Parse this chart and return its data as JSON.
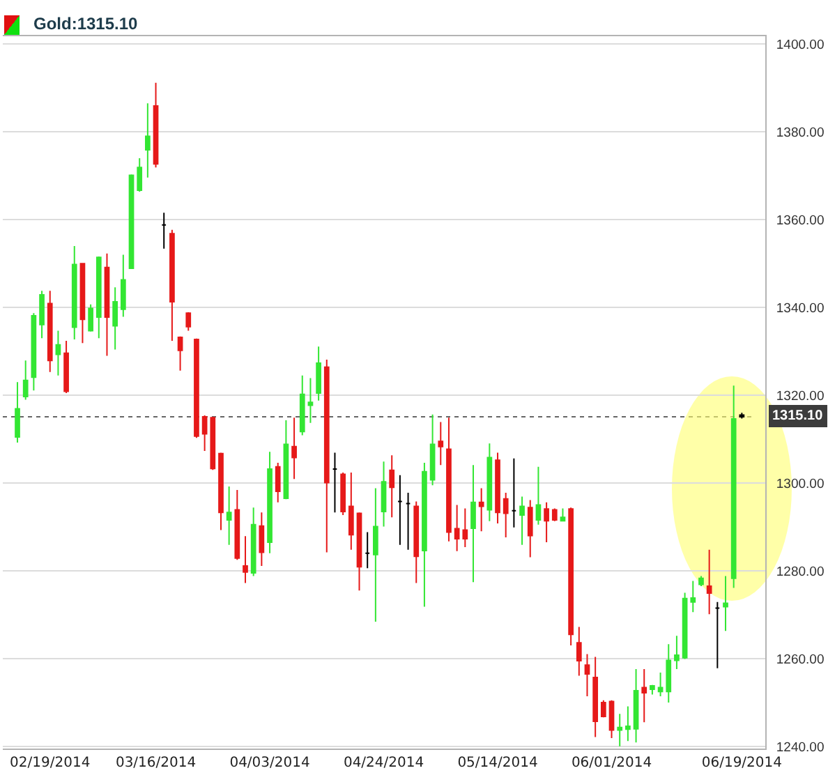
{
  "chart_data": {
    "type": "candlestick",
    "title": "Gold:1315.10",
    "categories": [
      null,
      null,
      null,
      null,
      "02/19/2014",
      null,
      null,
      null,
      null,
      null,
      null,
      null,
      null,
      null,
      null,
      null,
      null,
      "03/16/2014",
      null,
      null,
      null,
      null,
      null,
      null,
      null,
      null,
      null,
      null,
      null,
      null,
      null,
      "04/03/2014",
      null,
      null,
      null,
      null,
      null,
      null,
      null,
      null,
      null,
      null,
      null,
      null,
      null,
      "04/24/2014",
      null,
      null,
      null,
      null,
      null,
      null,
      null,
      null,
      null,
      null,
      null,
      null,
      null,
      "05/14/2014",
      null,
      null,
      null,
      null,
      null,
      null,
      null,
      null,
      null,
      null,
      null,
      null,
      null,
      "06/01/2014",
      null,
      null,
      null,
      null,
      null,
      null,
      null,
      null,
      null,
      null,
      null,
      null,
      null,
      null,
      null,
      "06/19/2014"
    ],
    "ohlc": [
      [
        1310.5,
        1323.0,
        1309.2,
        1316.9
      ],
      [
        1319.7,
        1327.9,
        1319.0,
        1323.4
      ],
      [
        1324.1,
        1338.7,
        1321.1,
        1338.1
      ],
      [
        1336.1,
        1343.8,
        1333.0,
        1342.9
      ],
      [
        1340.9,
        1343.8,
        1325.3,
        1327.9
      ],
      [
        1329.3,
        1334.7,
        1324.5,
        1331.5
      ],
      [
        1329.6,
        1332.4,
        1320.5,
        1320.9
      ],
      [
        1335.5,
        1354.0,
        1332.7,
        1349.8
      ],
      [
        1350.0,
        1350.1,
        1331.9,
        1337.3
      ],
      [
        1334.7,
        1340.7,
        1334.5,
        1339.8
      ],
      [
        1337.8,
        1351.6,
        1333.0,
        1351.4
      ],
      [
        1349.1,
        1352.3,
        1329.0,
        1337.8
      ],
      [
        1335.8,
        1344.6,
        1330.4,
        1341.3
      ],
      [
        1339.6,
        1352.0,
        1337.9,
        1346.3
      ],
      [
        1348.9,
        1370.3,
        1348.8,
        1370.1
      ],
      [
        1366.7,
        1374.0,
        1366.4,
        1371.9
      ],
      [
        1375.9,
        1386.5,
        1369.6,
        1379.0
      ],
      [
        1385.9,
        1391.2,
        1371.9,
        1372.7
      ],
      [
        1358.8,
        1361.6,
        1353.4,
        1358.8
      ],
      [
        1356.8,
        1357.7,
        1332.4,
        1341.3
      ],
      [
        1333.2,
        1333.4,
        1325.6,
        1330.2
      ],
      [
        1338.7,
        1338.9,
        1334.7,
        1335.6
      ],
      [
        1332.7,
        1332.9,
        1310.3,
        1310.7
      ],
      [
        1315.1,
        1315.4,
        1307.3,
        1311.2
      ],
      [
        1314.9,
        1315.1,
        1303.0,
        1303.3
      ],
      [
        1306.7,
        1306.9,
        1289.3,
        1293.3
      ],
      [
        1291.6,
        1299.2,
        1285.9,
        1293.3
      ],
      [
        1293.9,
        1298.4,
        1282.5,
        1282.9
      ],
      [
        1281.1,
        1287.9,
        1277.2,
        1279.7
      ],
      [
        1279.5,
        1294.4,
        1278.8,
        1290.5
      ],
      [
        1290.2,
        1293.3,
        1281.1,
        1284.2
      ],
      [
        1286.5,
        1307.1,
        1284.0,
        1303.2
      ],
      [
        1303.7,
        1304.6,
        1295.6,
        1298.1
      ],
      [
        1296.5,
        1314.3,
        1296.3,
        1308.8
      ],
      [
        1308.3,
        1314.9,
        1300.9,
        1305.8
      ],
      [
        1311.7,
        1324.5,
        1310.9,
        1320.2
      ],
      [
        1317.7,
        1323.9,
        1313.7,
        1318.4
      ],
      [
        1320.5,
        1331.1,
        1318.8,
        1327.3
      ],
      [
        1326.4,
        1328.1,
        1284.2,
        1300.1
      ],
      [
        1303.2,
        1306.9,
        1293.3,
        1303.2
      ],
      [
        1302.0,
        1302.4,
        1292.7,
        1293.5
      ],
      [
        1294.7,
        1302.4,
        1284.8,
        1288.2
      ],
      [
        1293.1,
        1293.3,
        1275.5,
        1280.9
      ],
      [
        1284.0,
        1288.8,
        1280.6,
        1284.0
      ],
      [
        1283.7,
        1298.8,
        1268.4,
        1290.1
      ],
      [
        1293.5,
        1304.9,
        1290.1,
        1300.3
      ],
      [
        1302.9,
        1306.3,
        1292.2,
        1299.0
      ],
      [
        1295.8,
        1301.8,
        1285.9,
        1295.8
      ],
      [
        1295.3,
        1297.8,
        1284.8,
        1295.3
      ],
      [
        1294.7,
        1295.8,
        1277.2,
        1283.3
      ],
      [
        1284.6,
        1304.6,
        1271.8,
        1302.6
      ],
      [
        1300.7,
        1315.6,
        1299.5,
        1308.8
      ],
      [
        1309.5,
        1313.9,
        1304.1,
        1308.3
      ],
      [
        1307.7,
        1314.9,
        1286.7,
        1288.8
      ],
      [
        1289.6,
        1295.0,
        1284.5,
        1287.3
      ],
      [
        1289.3,
        1294.2,
        1285.4,
        1287.3
      ],
      [
        1289.7,
        1304.1,
        1277.4,
        1295.6
      ],
      [
        1295.6,
        1298.8,
        1289.0,
        1294.7
      ],
      [
        1293.9,
        1309.0,
        1291.3,
        1305.8
      ],
      [
        1305.2,
        1306.9,
        1290.8,
        1293.3
      ],
      [
        1296.4,
        1297.8,
        1287.6,
        1293.1
      ],
      [
        1293.7,
        1305.6,
        1289.9,
        1293.7
      ],
      [
        1292.7,
        1296.9,
        1285.9,
        1294.7
      ],
      [
        1294.4,
        1296.1,
        1283.1,
        1288.0
      ],
      [
        1291.6,
        1303.7,
        1290.5,
        1295.0
      ],
      [
        1294.1,
        1295.6,
        1286.5,
        1291.4
      ],
      [
        1293.9,
        1294.2,
        1291.3,
        1291.6
      ],
      [
        1291.4,
        1294.2,
        1291.3,
        1292.2
      ],
      [
        1294.1,
        1294.4,
        1263.0,
        1265.5
      ],
      [
        1263.6,
        1267.2,
        1256.1,
        1259.5
      ],
      [
        1258.5,
        1261.0,
        1251.4,
        1256.5
      ],
      [
        1255.7,
        1260.4,
        1242.1,
        1245.7
      ],
      [
        1250.0,
        1250.5,
        1246.6,
        1246.8
      ],
      [
        1250.2,
        1250.5,
        1241.9,
        1243.7
      ],
      [
        1243.7,
        1247.4,
        1240.0,
        1244.3
      ],
      [
        1243.9,
        1249.1,
        1241.2,
        1244.6
      ],
      [
        1244.0,
        1257.6,
        1240.9,
        1252.7
      ],
      [
        1253.4,
        1257.6,
        1245.5,
        1252.2
      ],
      [
        1253.0,
        1254.0,
        1251.8,
        1253.8
      ],
      [
        1252.5,
        1256.8,
        1251.4,
        1253.4
      ],
      [
        1252.5,
        1263.3,
        1250.0,
        1259.6
      ],
      [
        1259.6,
        1265.2,
        1257.6,
        1260.8
      ],
      [
        1260.2,
        1275.0,
        1259.9,
        1273.7
      ],
      [
        1272.9,
        1277.7,
        1270.6,
        1273.8
      ],
      [
        1276.9,
        1278.8,
        1276.5,
        1278.3
      ],
      [
        1276.5,
        1284.8,
        1270.1,
        1274.9
      ],
      [
        1271.5,
        1272.9,
        1257.8,
        1271.5
      ],
      [
        1271.8,
        1278.8,
        1266.3,
        1272.6
      ],
      [
        1278.3,
        1322.2,
        1276.1,
        1314.6
      ],
      [
        1315.5,
        1316.0,
        1314.7,
        1315.1
      ]
    ],
    "colors": [
      "#33e633",
      "#33e633",
      "#33e633",
      "#33e633",
      "#e61919",
      "#33e633",
      "#e61919",
      "#33e633",
      "#e61919",
      "#33e633",
      "#33e633",
      "#e61919",
      "#33e633",
      "#33e633",
      "#33e633",
      "#33e633",
      "#33e633",
      "#e61919",
      "#000000",
      "#e61919",
      "#e61919",
      "#e61919",
      "#e61919",
      "#e61919",
      "#e61919",
      "#e61919",
      "#33e633",
      "#e61919",
      "#e61919",
      "#33e633",
      "#e61919",
      "#33e633",
      "#e61919",
      "#33e633",
      "#e61919",
      "#33e633",
      "#33e633",
      "#33e633",
      "#e61919",
      "#000000",
      "#e61919",
      "#e61919",
      "#e61919",
      "#000000",
      "#33e633",
      "#33e633",
      "#e61919",
      "#000000",
      "#000000",
      "#e61919",
      "#33e633",
      "#33e633",
      "#e61919",
      "#e61919",
      "#e61919",
      "#e61919",
      "#33e633",
      "#e61919",
      "#33e633",
      "#e61919",
      "#e61919",
      "#000000",
      "#33e633",
      "#e61919",
      "#33e633",
      "#e61919",
      "#e61919",
      "#33e633",
      "#e61919",
      "#e61919",
      "#e61919",
      "#e61919",
      "#e61919",
      "#e61919",
      "#33e633",
      "#33e633",
      "#33e633",
      "#e61919",
      "#33e633",
      "#33e633",
      "#33e633",
      "#33e633",
      "#33e633",
      "#33e633",
      "#33e633",
      "#e61919",
      "#000000",
      "#33e633",
      "#33e633",
      "#000000"
    ],
    "ylim": [
      1239.5,
      1401.8
    ],
    "yticks": [
      {
        "value": 1240,
        "label": "1240.00"
      },
      {
        "value": 1260,
        "label": "1260.00"
      },
      {
        "value": 1280,
        "label": "1280.00"
      },
      {
        "value": 1300,
        "label": "1300.00"
      },
      {
        "value": 1320,
        "label": "1320.00"
      },
      {
        "value": 1340,
        "label": "1340.00"
      },
      {
        "value": 1360,
        "label": "1360.00"
      },
      {
        "value": 1380,
        "label": "1380.00"
      },
      {
        "value": 1400,
        "label": "1400.00"
      }
    ],
    "grid": "y",
    "ref_lines": [
      {
        "axis": "y",
        "value": 1315.1,
        "label": "1315.10",
        "line_style": "dotted",
        "color": "#666666"
      }
    ]
  }
}
